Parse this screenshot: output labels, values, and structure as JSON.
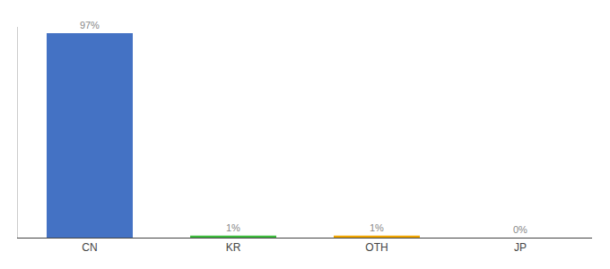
{
  "chart_data": {
    "type": "bar",
    "categories": [
      "CN",
      "KR",
      "OTH",
      "JP"
    ],
    "values": [
      97,
      1,
      1,
      0
    ],
    "value_labels": [
      "97%",
      "1%",
      "1%",
      "0%"
    ],
    "data_labels": true,
    "colors": [
      "#4472c4",
      "#3dbb3d",
      "#f0a500",
      "#4472c4"
    ],
    "ylim": [
      0,
      100
    ],
    "grid": false,
    "tick_labels": "x"
  }
}
